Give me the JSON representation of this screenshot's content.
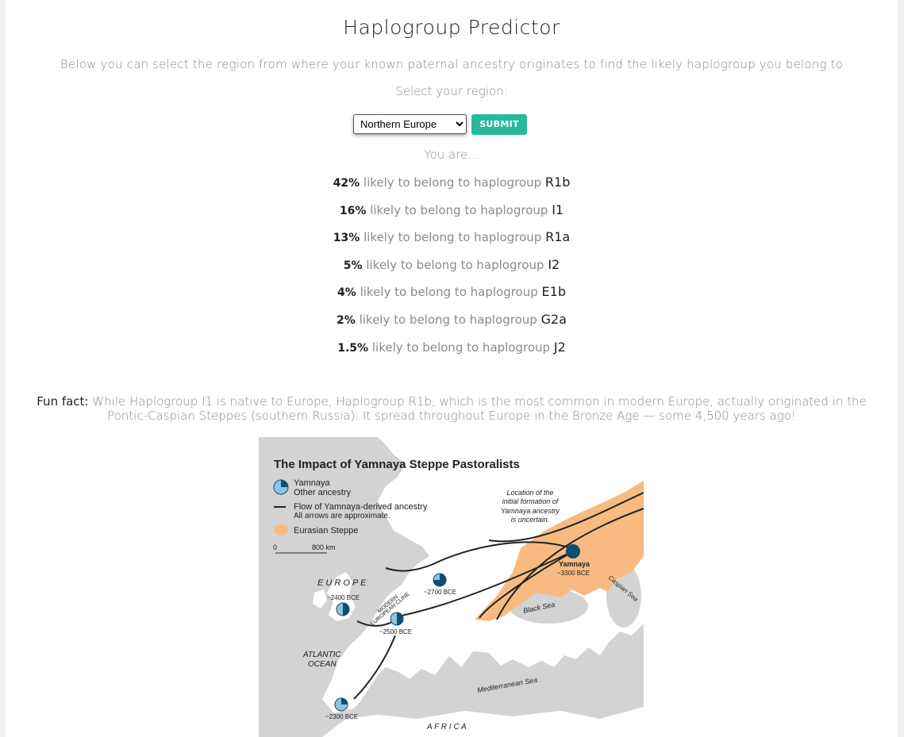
{
  "header": {
    "title": "Haplogroup Predictor",
    "subtitle": "Below you can select the region from where your known paternal ancestry originates to find the likely haplogroup you belong to"
  },
  "form": {
    "select_label": "Select your region:",
    "selected_region": "Northern Europe",
    "submit_label": "SUBMIT"
  },
  "results": {
    "intro": "You are...",
    "phrase": "likely to belong to haplogroup",
    "items": [
      {
        "percent": "42%",
        "haplogroup": "R1b"
      },
      {
        "percent": "16%",
        "haplogroup": "I1"
      },
      {
        "percent": "13%",
        "haplogroup": "R1a"
      },
      {
        "percent": "5%",
        "haplogroup": "I2"
      },
      {
        "percent": "4%",
        "haplogroup": "E1b"
      },
      {
        "percent": "2%",
        "haplogroup": "G2a"
      },
      {
        "percent": "1.5%",
        "haplogroup": "J2"
      }
    ]
  },
  "fun_fact": {
    "label": "Fun fact:",
    "text": "While Haplogroup I1 is native to Europe, Haplogroup R1b, which is the most common in modern Europe, actually originated in the Pontic-Caspian Steppes (southern Russia). It spread throughout Europe in the Bronze Age — some 4,500 years ago!"
  },
  "map": {
    "title": "The Impact of Yamnaya Steppe Pastoralists",
    "legend_yamnaya": "Yamnaya",
    "legend_other": "Other ancestry",
    "legend_flow_1": "Flow of Yamnaya-derived ancestry",
    "legend_flow_2": "All arrows are approximate.",
    "legend_steppe": "Eurasian Steppe",
    "scale_start": "0",
    "scale_end": "800 km",
    "note_1": "Location of the",
    "note_2": "initial formation of",
    "note_3": "Yamnaya ancestry",
    "note_4": "is uncertain.",
    "yamnaya_label": "Yamnaya",
    "yamnaya_date": "~3300 BCE",
    "europe_label": "E U R O P E",
    "date_2400": "~2400 BCE",
    "date_2700": "~2700 BCE",
    "date_2500": "~2500 BCE",
    "date_2300": "~2300 BCE",
    "cline_1": "MODERN",
    "cline_2": "EUROPEAN CLINE",
    "atlantic_1": "ATLANTIC",
    "atlantic_2": "OCEAN",
    "black_sea": "Black Sea",
    "caspian_sea": "Caspian Sea",
    "med_sea": "Mediterranean Sea",
    "africa": "A F R I C A",
    "colors": {
      "sea": "#d3d3d3",
      "land": "#ffffff",
      "steppe": "#f7bb82",
      "yamnaya": "#0d4f6e",
      "other": "#8fc3e2"
    }
  }
}
